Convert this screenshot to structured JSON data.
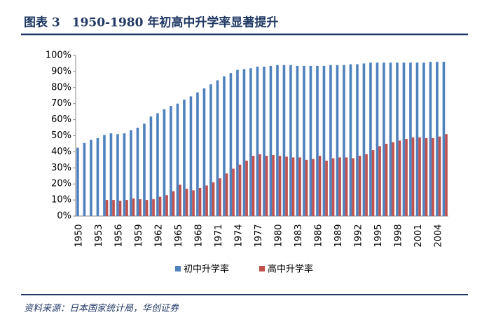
{
  "chart_data": {
    "type": "bar",
    "title": "图表 3　1950-1980 年初高中升学率显著提升",
    "source": "资料来源：日本国家统计局，华创证券",
    "categories": [
      "1950",
      null,
      null,
      "1953",
      null,
      null,
      "1956",
      null,
      null,
      "1959",
      null,
      null,
      "1962",
      null,
      null,
      "1965",
      null,
      null,
      "1968",
      null,
      null,
      "1971",
      null,
      null,
      "1974",
      null,
      null,
      "1977",
      null,
      null,
      "1980",
      null,
      null,
      "1983",
      null,
      null,
      "1986",
      null,
      null,
      "1989",
      null,
      null,
      "1992",
      null,
      null,
      "1995",
      null,
      null,
      "1998",
      null,
      null,
      "2001",
      null,
      null,
      "2004",
      null
    ],
    "series": [
      {
        "name": "初中升学率",
        "color": "#4f81bd",
        "values": [
          42.5,
          45.5,
          47.5,
          48.5,
          50.5,
          51.5,
          51,
          51.5,
          53.5,
          55,
          57.5,
          62,
          64,
          66.5,
          68.5,
          70,
          72.5,
          74.5,
          77,
          79.5,
          82,
          84.5,
          87,
          89,
          91,
          91.5,
          92,
          93,
          93,
          93.5,
          94,
          94,
          94,
          93.5,
          93.5,
          93.5,
          93.5,
          93.5,
          94,
          94,
          94,
          94.5,
          94.5,
          95,
          95.5,
          95.5,
          95.5,
          95.5,
          95.5,
          95.5,
          95.5,
          95.5,
          95.5,
          96,
          96,
          96
        ]
      },
      {
        "name": "高中升学率",
        "color": "#c0504d",
        "values": [
          null,
          null,
          null,
          null,
          10,
          10,
          9.5,
          10,
          11,
          10.5,
          10,
          10.5,
          12,
          13,
          15.5,
          19.5,
          17,
          16,
          17.5,
          19,
          21,
          23.5,
          26.5,
          29.5,
          32,
          34.5,
          37.5,
          38.5,
          37.5,
          38,
          37.5,
          37,
          36.5,
          36.5,
          35,
          35.5,
          37.5,
          34.5,
          36,
          36.5,
          36.5,
          36,
          37.5,
          38.5,
          41,
          43.5,
          45,
          46,
          47,
          48,
          49,
          49,
          48.5,
          48.5,
          49.5,
          51
        ]
      }
    ],
    "ylim": [
      0,
      100
    ],
    "yticks": [
      {
        "value": 0,
        "label": "0%"
      },
      {
        "value": 10,
        "label": "10%"
      },
      {
        "value": 20,
        "label": "20%"
      },
      {
        "value": 30,
        "label": "30%"
      },
      {
        "value": 40,
        "label": "40%"
      },
      {
        "value": 50,
        "label": "50%"
      },
      {
        "value": 60,
        "label": "60%"
      },
      {
        "value": 70,
        "label": "70%"
      },
      {
        "value": 80,
        "label": "80%"
      },
      {
        "value": 90,
        "label": "90%"
      },
      {
        "value": 100,
        "label": "100%"
      }
    ],
    "grid": false,
    "legend": "bottom"
  }
}
